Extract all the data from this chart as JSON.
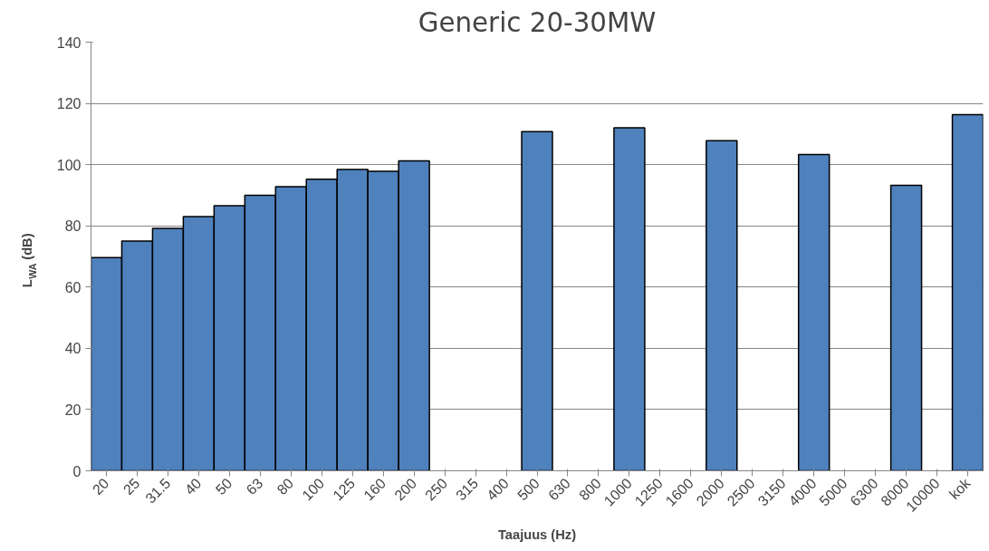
{
  "chart_data": {
    "type": "bar",
    "title": "Generic 20-30MW",
    "xlabel": "Taajuus (Hz)",
    "ylabel": "L$_{WA}$ (dB)",
    "categories": [
      "20",
      "25",
      "31.5",
      "40",
      "50",
      "63",
      "80",
      "100",
      "125",
      "160",
      "200",
      "250",
      "315",
      "400",
      "500",
      "630",
      "800",
      "1000",
      "1250",
      "1600",
      "2000",
      "2500",
      "3150",
      "4000",
      "5000",
      "6300",
      "8000",
      "10000",
      "kok"
    ],
    "values": [
      69.6,
      75.0,
      79.2,
      83.0,
      86.6,
      90.0,
      92.8,
      95.2,
      98.4,
      97.8,
      101.2,
      null,
      null,
      null,
      110.8,
      null,
      null,
      112.0,
      null,
      null,
      107.8,
      null,
      null,
      103.3,
      null,
      null,
      93.2,
      null,
      116.3
    ],
    "color": "#4f81bd",
    "ylim": [
      0,
      140
    ],
    "yticks": [
      0,
      20,
      40,
      60,
      80,
      100,
      120,
      140
    ],
    "grid": "y"
  }
}
